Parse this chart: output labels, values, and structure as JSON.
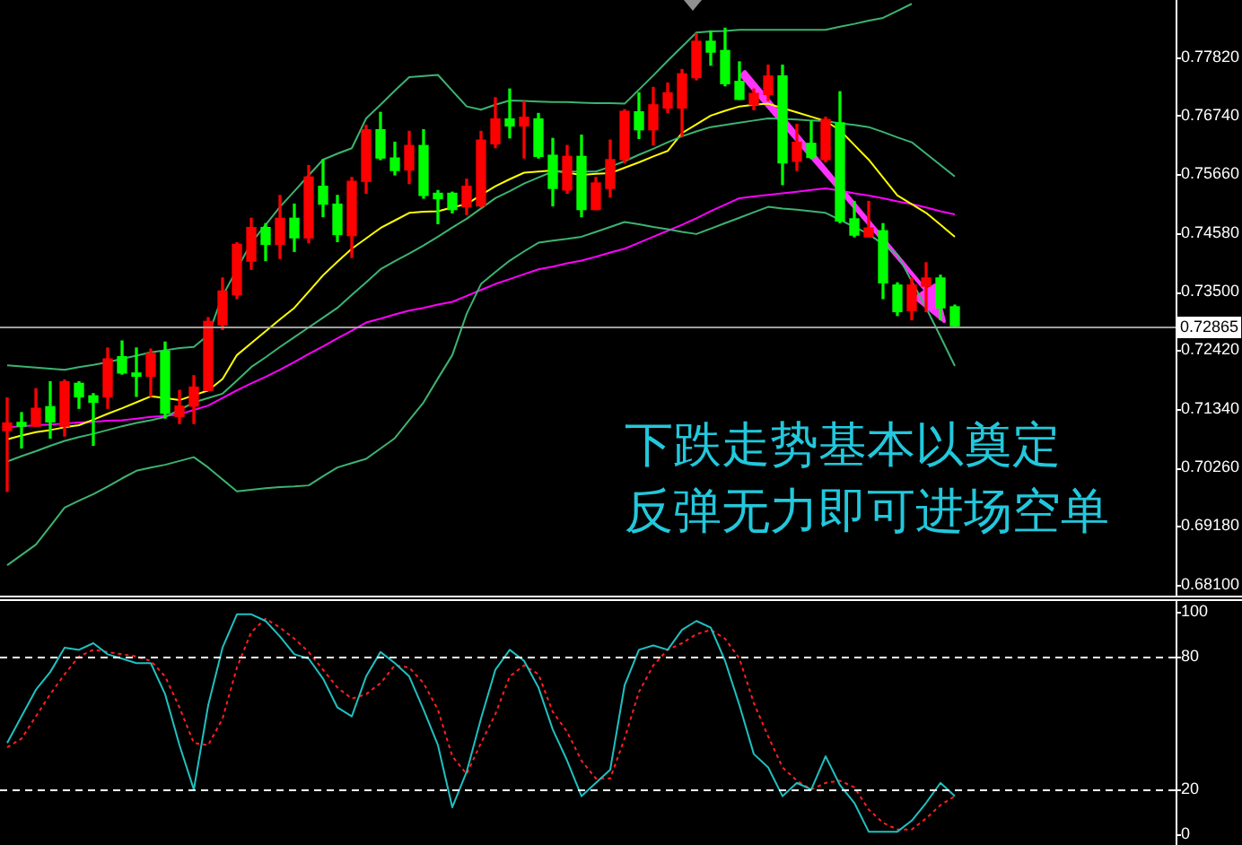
{
  "chart_data": [
    {
      "type": "candlestick",
      "tick_labels": "y",
      "ylim": [
        0.679,
        0.7887
      ],
      "yticks": [
        {
          "value": 0.7782,
          "label": "0.77820"
        },
        {
          "value": 0.7674,
          "label": "0.76740"
        },
        {
          "value": 0.7566,
          "label": "0.75660"
        },
        {
          "value": 0.7458,
          "label": "0.74580"
        },
        {
          "value": 0.735,
          "label": "0.73500"
        },
        {
          "value": 0.7242,
          "label": "0.72420"
        },
        {
          "value": 0.7134,
          "label": "0.71340"
        },
        {
          "value": 0.7026,
          "label": "0.70260"
        },
        {
          "value": 0.6918,
          "label": "0.69180"
        },
        {
          "value": 0.681,
          "label": "0.68100"
        }
      ],
      "categories": [
        null,
        null,
        null,
        null,
        null,
        null,
        null,
        null,
        null,
        null,
        null,
        null,
        null,
        null,
        null,
        null,
        null,
        null,
        null,
        null,
        null,
        null,
        null,
        null,
        null,
        null,
        null,
        null,
        null,
        null,
        null,
        null,
        null,
        null,
        null,
        null,
        null,
        null,
        null,
        null,
        null,
        null,
        null,
        null,
        null,
        null,
        null,
        null,
        null,
        null,
        null,
        null,
        null,
        null,
        null,
        null,
        null,
        null,
        null,
        null,
        null,
        null,
        null,
        null,
        null,
        null,
        null
      ],
      "ohlc": [
        [
          0.7094,
          0.7154,
          0.6982,
          0.7108
        ],
        [
          0.7109,
          0.7127,
          0.7062,
          0.7102
        ],
        [
          0.7102,
          0.7171,
          0.7102,
          0.7135
        ],
        [
          0.7138,
          0.7184,
          0.708,
          0.711
        ],
        [
          0.7102,
          0.7187,
          0.7084,
          0.7184
        ],
        [
          0.7181,
          0.7184,
          0.7135,
          0.7156
        ],
        [
          0.7158,
          0.7162,
          0.7067,
          0.7146
        ],
        [
          0.7156,
          0.7246,
          0.7135,
          0.7226
        ],
        [
          0.723,
          0.7259,
          0.7198,
          0.72
        ],
        [
          0.72,
          0.7246,
          0.7157,
          0.7194
        ],
        [
          0.7194,
          0.7244,
          0.7157,
          0.7236
        ],
        [
          0.724,
          0.7257,
          0.7117,
          0.7126
        ],
        [
          0.712,
          0.7168,
          0.7107,
          0.7139
        ],
        [
          0.7139,
          0.7195,
          0.7107,
          0.7174
        ],
        [
          0.7168,
          0.7302,
          0.7168,
          0.7295
        ],
        [
          0.7289,
          0.7375,
          0.728,
          0.7351
        ],
        [
          0.7344,
          0.744,
          0.7337,
          0.7437
        ],
        [
          0.7406,
          0.7485,
          0.7391,
          0.7468
        ],
        [
          0.7468,
          0.7475,
          0.7407,
          0.7437
        ],
        [
          0.7437,
          0.7527,
          0.7411,
          0.7485
        ],
        [
          0.7485,
          0.7511,
          0.7424,
          0.7449
        ],
        [
          0.7449,
          0.7582,
          0.744,
          0.7561
        ],
        [
          0.7544,
          0.7593,
          0.7488,
          0.7511
        ],
        [
          0.7511,
          0.7527,
          0.7442,
          0.7455
        ],
        [
          0.7453,
          0.756,
          0.7413,
          0.7553
        ],
        [
          0.7553,
          0.7656,
          0.7531,
          0.7648
        ],
        [
          0.7648,
          0.768,
          0.7593,
          0.7596
        ],
        [
          0.7596,
          0.7625,
          0.7565,
          0.7573
        ],
        [
          0.7574,
          0.7645,
          0.7549,
          0.7619
        ],
        [
          0.7619,
          0.7648,
          0.7522,
          0.7527
        ],
        [
          0.7531,
          0.7536,
          0.7475,
          0.7521
        ],
        [
          0.7531,
          0.7533,
          0.7495,
          0.7501
        ],
        [
          0.7506,
          0.7557,
          0.7492,
          0.7544
        ],
        [
          0.7508,
          0.7645,
          0.7506,
          0.7629
        ],
        [
          0.7622,
          0.7707,
          0.7615,
          0.7668
        ],
        [
          0.7668,
          0.7723,
          0.7633,
          0.7655
        ],
        [
          0.7655,
          0.77,
          0.7596,
          0.7671
        ],
        [
          0.7668,
          0.7678,
          0.7596,
          0.7599
        ],
        [
          0.7601,
          0.7632,
          0.7508,
          0.754
        ],
        [
          0.7537,
          0.7619,
          0.7531,
          0.7599
        ],
        [
          0.7599,
          0.7638,
          0.7488,
          0.7501
        ],
        [
          0.7501,
          0.756,
          0.7501,
          0.755
        ],
        [
          0.754,
          0.7629,
          0.7524,
          0.7593
        ],
        [
          0.7593,
          0.7685,
          0.7587,
          0.7682
        ],
        [
          0.7681,
          0.7716,
          0.7632,
          0.7648
        ],
        [
          0.7648,
          0.7726,
          0.762,
          0.7694
        ],
        [
          0.7688,
          0.7734,
          0.768,
          0.7716
        ],
        [
          0.7688,
          0.7759,
          0.7636,
          0.7751
        ],
        [
          0.7744,
          0.7825,
          0.774,
          0.7811
        ],
        [
          0.7811,
          0.783,
          0.7767,
          0.7791
        ],
        [
          0.7794,
          0.7835,
          0.7729,
          0.7733
        ],
        [
          0.7737,
          0.7773,
          0.7704,
          0.7704
        ],
        [
          0.7694,
          0.7723,
          0.7685,
          0.7715
        ],
        [
          0.7713,
          0.7767,
          0.7702,
          0.7747
        ],
        [
          0.7747,
          0.7767,
          0.7547,
          0.7587
        ],
        [
          0.759,
          0.7658,
          0.7573,
          0.7625
        ],
        [
          0.7623,
          0.7664,
          0.7595,
          0.7597
        ],
        [
          0.7593,
          0.7671,
          0.7589,
          0.7667
        ],
        [
          0.7661,
          0.7718,
          0.7477,
          0.748
        ],
        [
          0.7484,
          0.7516,
          0.7451,
          0.7454
        ],
        [
          0.7451,
          0.7516,
          0.7451,
          0.7467
        ],
        [
          0.7462,
          0.7475,
          0.7337,
          0.7366
        ],
        [
          0.7362,
          0.7366,
          0.7306,
          0.7313
        ],
        [
          0.7315,
          0.7375,
          0.7298,
          0.7362
        ],
        [
          0.736,
          0.7403,
          0.7313,
          0.7375
        ],
        [
          0.7375,
          0.738,
          0.7298,
          0.732
        ],
        [
          0.7322,
          0.7325,
          0.7285,
          0.7287
        ]
      ],
      "series": [
        {
          "type": "line",
          "color": "#3cb371",
          "values": [
            0.7214,
            0.7212,
            0.721,
            0.7208,
            0.7206,
            0.7211,
            0.7215,
            0.722,
            0.7226,
            0.7232,
            0.7238,
            0.7242,
            0.7246,
            0.7248,
            0.727,
            0.7342,
            0.7391,
            0.744,
            0.7473,
            0.7506,
            0.7535,
            0.7564,
            0.7593,
            0.7604,
            0.7614,
            0.7669,
            0.7694,
            0.772,
            0.7745,
            0.7747,
            0.7749,
            0.772,
            0.7691,
            0.7685,
            0.7694,
            0.7702,
            0.7701,
            0.77,
            0.7699,
            0.7699,
            0.7698,
            0.7697,
            0.7697,
            0.7696,
            0.7722,
            0.7748,
            0.7775,
            0.7801,
            0.7827,
            0.7829,
            0.783,
            0.7832,
            0.7832,
            0.7832,
            0.7832,
            0.7832,
            0.7832,
            0.7832,
            0.7838,
            0.7843,
            0.7849,
            0.7854,
            0.7867,
            0.788,
            null,
            null,
            null
          ]
        },
        {
          "type": "line",
          "color": "#3cb371",
          "values": [
            0.7037,
            0.7047,
            0.7056,
            0.7066,
            0.7075,
            0.7082,
            0.7088,
            0.7095,
            0.7102,
            0.7108,
            0.7113,
            0.7119,
            0.7132,
            0.7146,
            0.7154,
            0.7162,
            0.7186,
            0.7211,
            0.7229,
            0.7248,
            0.7266,
            0.7284,
            0.7302,
            0.732,
            0.7344,
            0.7367,
            0.7391,
            0.7406,
            0.742,
            0.7435,
            0.7451,
            0.7468,
            0.7484,
            0.7503,
            0.7522,
            0.7535,
            0.7549,
            0.756,
            0.7571,
            0.7571,
            0.7571,
            0.7571,
            0.758,
            0.759,
            0.7602,
            0.7613,
            0.7625,
            0.7636,
            0.7645,
            0.7653,
            0.7657,
            0.7661,
            0.7665,
            0.7669,
            0.7668,
            0.7667,
            0.7665,
            0.7664,
            0.766,
            0.7657,
            0.7653,
            0.7644,
            0.7634,
            0.7625,
            0.7604,
            0.7583,
            0.7562
          ]
        },
        {
          "type": "line",
          "color": "#3cb371",
          "values": [
            0.6846,
            0.6865,
            0.6884,
            0.6918,
            0.6952,
            0.6965,
            0.6977,
            0.6991,
            0.7006,
            0.702,
            0.7026,
            0.7031,
            0.7038,
            0.7045,
            0.7026,
            0.7004,
            0.6982,
            0.6985,
            0.6988,
            0.699,
            0.6991,
            0.6993,
            0.701,
            0.7026,
            0.7034,
            0.7042,
            0.7061,
            0.708,
            0.7113,
            0.7146,
            0.719,
            0.7233,
            0.7309,
            0.7364,
            0.7386,
            0.7407,
            0.7424,
            0.744,
            0.7444,
            0.7447,
            0.7451,
            0.746,
            0.7469,
            0.7478,
            0.7474,
            0.7469,
            0.7465,
            0.746,
            0.7456,
            0.7466,
            0.7476,
            0.7486,
            0.7496,
            0.7506,
            0.7503,
            0.7501,
            0.7498,
            0.7495,
            0.7482,
            0.7469,
            0.7456,
            0.7437,
            0.7418,
            0.7369,
            0.732,
            0.7267,
            0.7213
          ]
        },
        {
          "type": "line",
          "color": "#ffff00",
          "values": [
            0.7078,
            0.7085,
            0.7091,
            0.7095,
            0.71,
            0.7104,
            0.7114,
            0.7125,
            0.7135,
            0.7146,
            0.7157,
            0.7154,
            0.715,
            0.7159,
            0.7168,
            0.7189,
            0.7233,
            0.7255,
            0.7277,
            0.7299,
            0.732,
            0.735,
            0.738,
            0.7405,
            0.7429,
            0.7448,
            0.7467,
            0.7481,
            0.7495,
            0.7497,
            0.7498,
            0.7505,
            0.7511,
            0.7528,
            0.7544,
            0.7557,
            0.7569,
            0.7571,
            0.7573,
            0.7569,
            0.7565,
            0.7567,
            0.7568,
            0.7578,
            0.7588,
            0.7599,
            0.7609,
            0.7642,
            0.7658,
            0.7674,
            0.7683,
            0.7691,
            0.7694,
            0.7696,
            0.7688,
            0.768,
            0.7672,
            0.7664,
            0.7647,
            0.762,
            0.7593,
            0.756,
            0.7527,
            0.7511,
            0.7495,
            0.7473,
            0.7451
          ]
        },
        {
          "type": "line",
          "color": "#ff00ff",
          "values": [
            0.71,
            0.7102,
            0.7104,
            0.7105,
            0.7107,
            0.7109,
            0.711,
            0.7112,
            0.7113,
            0.7116,
            0.7119,
            0.7121,
            0.7124,
            0.7132,
            0.714,
            0.7154,
            0.7168,
            0.7181,
            0.7193,
            0.7206,
            0.722,
            0.7235,
            0.7249,
            0.7264,
            0.7278,
            0.7293,
            0.73,
            0.7308,
            0.7315,
            0.732,
            0.7326,
            0.7331,
            0.7342,
            0.7353,
            0.7364,
            0.7373,
            0.7382,
            0.7391,
            0.7396,
            0.7402,
            0.7407,
            0.7414,
            0.7422,
            0.7429,
            0.744,
            0.7451,
            0.7462,
            0.7473,
            0.7485,
            0.7498,
            0.751,
            0.7522,
            0.7525,
            0.7528,
            0.7531,
            0.7534,
            0.7537,
            0.754,
            0.7536,
            0.7531,
            0.7527,
            0.7522,
            0.7516,
            0.7511,
            0.7505,
            0.7498,
            0.7492
          ]
        }
      ],
      "ref_lines": [
        {
          "axis": "y",
          "value": 0.72865,
          "label": "0.72865",
          "color": "#a0a0a0"
        }
      ],
      "annotations": [
        "下跌走势基本以奠定",
        "反弹无力即可进场空单"
      ]
    },
    {
      "type": "line",
      "tick_labels": "y",
      "ylim": [
        -5,
        105
      ],
      "yticks": [
        0,
        20,
        80,
        100
      ],
      "categories": [
        null,
        null,
        null,
        null,
        null,
        null,
        null,
        null,
        null,
        null,
        null,
        null,
        null,
        null,
        null,
        null,
        null,
        null,
        null,
        null,
        null,
        null,
        null,
        null,
        null,
        null,
        null,
        null,
        null,
        null,
        null,
        null,
        null,
        null,
        null,
        null,
        null,
        null,
        null,
        null,
        null,
        null,
        null,
        null,
        null,
        null,
        null,
        null,
        null,
        null,
        null,
        null,
        null,
        null,
        null,
        null,
        null,
        null,
        null,
        null,
        null,
        null,
        null,
        null,
        null,
        null,
        null
      ],
      "series": [
        {
          "color": "#20c0c0",
          "line_style": "solid",
          "values": [
            41,
            53,
            65,
            73,
            84,
            83,
            86,
            81,
            79,
            77,
            77,
            63,
            40,
            20,
            58,
            84,
            99,
            99,
            96,
            89,
            81,
            79,
            70,
            57,
            53,
            71,
            82,
            77,
            71,
            56,
            40,
            12,
            28,
            52,
            74,
            83,
            78,
            66,
            47,
            33,
            17,
            23,
            29,
            67,
            83,
            85,
            83,
            92,
            96,
            93,
            78,
            58,
            36,
            30,
            17,
            23,
            20,
            35,
            22,
            14,
            1,
            1,
            1,
            6,
            14,
            23,
            17
          ]
        },
        {
          "color": "#ff2020",
          "line_style": "dotted",
          "values": [
            39,
            43,
            53,
            63,
            72,
            80,
            83,
            82,
            81,
            80,
            78,
            71,
            57,
            41,
            40,
            52,
            75,
            91,
            97,
            93,
            88,
            82,
            74,
            66,
            61,
            63,
            68,
            76,
            75,
            68,
            56,
            35,
            27,
            41,
            54,
            71,
            76,
            72,
            55,
            46,
            33,
            25,
            25,
            43,
            64,
            76,
            83,
            86,
            90,
            92,
            88,
            79,
            59,
            44,
            30,
            24,
            20,
            23,
            24,
            21,
            11,
            5,
            2,
            2,
            7,
            13,
            17
          ]
        }
      ],
      "ref_lines": [
        {
          "axis": "y",
          "value": 80,
          "line_style": "dashed",
          "color": "#ffffff"
        },
        {
          "axis": "y",
          "value": 20,
          "line_style": "dashed",
          "color": "#ffffff"
        }
      ]
    }
  ]
}
